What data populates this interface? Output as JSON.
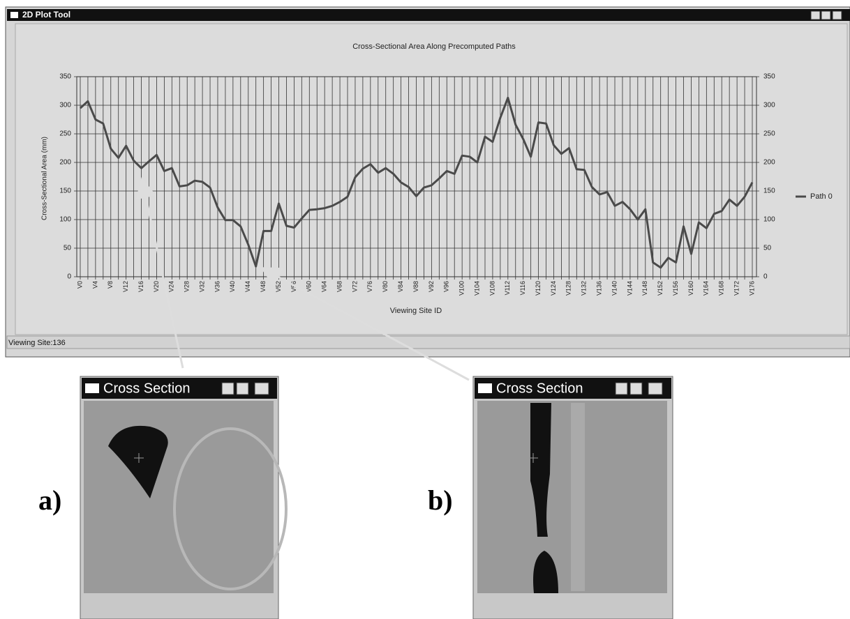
{
  "window": {
    "title": "2D Plot Tool",
    "status": "Viewing Site:136"
  },
  "chart_data": {
    "type": "line",
    "title": "Cross-Sectional Area Along Precomputed Paths",
    "x_label": "Viewing Site ID",
    "y_label": "Cross-Sectional Area (mm)",
    "categories": [
      "V0",
      null,
      "V4",
      null,
      "V8",
      null,
      "V12",
      null,
      "V16",
      null,
      "V20",
      null,
      "V24",
      null,
      "V28",
      null,
      "V32",
      null,
      "V36",
      null,
      "V40",
      null,
      "V44",
      null,
      "V48",
      null,
      "V52",
      null,
      "V56",
      null,
      "V60",
      null,
      "V64",
      null,
      "V68",
      null,
      "V72",
      null,
      "V76",
      null,
      "V80",
      null,
      "V84",
      null,
      "V88",
      null,
      "V92",
      null,
      "V96",
      null,
      "V100",
      null,
      "V104",
      null,
      "V108",
      null,
      "V112",
      null,
      "V116",
      null,
      "V120",
      null,
      "V124",
      null,
      "V128",
      null,
      "V132",
      null,
      "V136",
      null,
      "V140",
      null,
      "V144",
      null,
      "V148",
      null,
      "V152",
      null,
      "V156",
      null,
      "V160",
      null,
      "V164",
      null,
      "V168",
      null,
      "V172",
      null,
      "V176"
    ],
    "series": [
      {
        "name": "Path 0",
        "color": "#4a4a4a",
        "values": [
          295,
          307,
          275,
          268,
          224,
          208,
          229,
          203,
          190,
          202,
          213,
          185,
          190,
          158,
          160,
          168,
          166,
          156,
          121,
          99,
          99,
          88,
          56,
          18,
          80,
          80,
          128,
          89,
          86,
          102,
          117,
          118,
          120,
          124,
          131,
          140,
          174,
          189,
          197,
          182,
          190,
          180,
          165,
          157,
          141,
          156,
          160,
          172,
          185,
          180,
          212,
          210,
          200,
          245,
          236,
          278,
          313,
          266,
          241,
          210,
          270,
          268,
          230,
          215,
          225,
          188,
          187,
          157,
          144,
          148,
          124,
          131,
          118,
          100,
          118,
          25,
          16,
          33,
          25,
          88,
          40,
          95,
          85,
          110,
          115,
          135,
          124,
          140,
          165
        ]
      }
    ],
    "ylim": [
      0,
      350
    ],
    "yticks": [
      0,
      50,
      100,
      150,
      200,
      250,
      300,
      350
    ],
    "grid": true,
    "legend": "right"
  },
  "cross_sections": [
    {
      "label": "a)",
      "title": "Cross Section"
    },
    {
      "label": "b)",
      "title": "Cross Section"
    }
  ]
}
